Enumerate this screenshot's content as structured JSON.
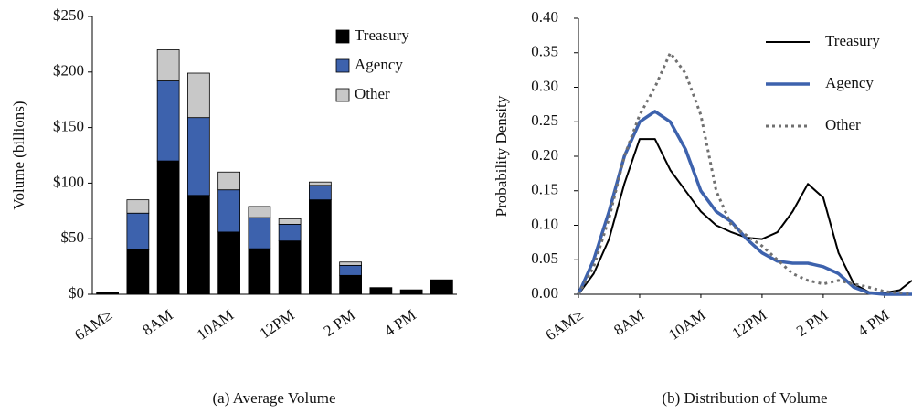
{
  "chart_data": [
    {
      "type": "bar",
      "stacked": true,
      "caption": "(a)  Average Volume",
      "y_label": "Volume (billions)",
      "categories": [
        "6AM≥",
        null,
        "8AM",
        null,
        "10AM",
        null,
        "12PM",
        null,
        "2 PM",
        null,
        "4 PM",
        null
      ],
      "series": [
        {
          "name": "Treasury",
          "color": "#000000",
          "values": [
            2,
            40,
            120,
            89,
            56,
            41,
            48,
            85,
            17,
            6,
            4,
            13
          ]
        },
        {
          "name": "Agency",
          "color": "#3d62ad",
          "values": [
            0,
            33,
            72,
            70,
            38,
            28,
            15,
            13,
            9,
            0,
            0,
            0
          ]
        },
        {
          "name": "Other",
          "color": "#c8c8c8",
          "values": [
            0,
            12,
            28,
            40,
            16,
            10,
            5,
            3,
            3,
            0,
            0,
            0
          ]
        }
      ],
      "ylim": [
        0,
        250
      ],
      "yticks": [
        {
          "value": 0,
          "label": "$0"
        },
        {
          "value": 50,
          "label": "$50"
        },
        {
          "value": 100,
          "label": "$100"
        },
        {
          "value": 150,
          "label": "$150"
        },
        {
          "value": 200,
          "label": "$200"
        },
        {
          "value": 250,
          "label": "$250"
        }
      ],
      "legend": "upper right",
      "grid": false
    },
    {
      "type": "line",
      "caption": "(b)  Distribution of Volume",
      "y_label": "Probability Density",
      "x": [
        6,
        6.5,
        7,
        7.5,
        8,
        8.5,
        9,
        9.5,
        10,
        10.5,
        11,
        11.5,
        12,
        12.5,
        13,
        13.5,
        14,
        14.5,
        15,
        15.5,
        16,
        16.5,
        16.9
      ],
      "xlim": [
        6,
        16.9
      ],
      "xticks": [
        {
          "value": 6,
          "label": "6AM≥"
        },
        {
          "value": 8,
          "label": "8AM"
        },
        {
          "value": 10,
          "label": "10AM"
        },
        {
          "value": 12,
          "label": "12PM"
        },
        {
          "value": 14,
          "label": "2 PM"
        },
        {
          "value": 16,
          "label": "4 PM"
        }
      ],
      "series": [
        {
          "name": "Treasury",
          "color": "#000000",
          "line_style": "solid",
          "width": 2,
          "values": [
            0,
            0.03,
            0.08,
            0.16,
            0.225,
            0.225,
            0.18,
            0.15,
            0.12,
            0.1,
            0.09,
            0.082,
            0.08,
            0.09,
            0.12,
            0.16,
            0.14,
            0.06,
            0.015,
            0.003,
            0.002,
            0.006,
            0.02
          ]
        },
        {
          "name": "Agency",
          "color": "#3d62ad",
          "line_style": "solid",
          "width": 3.5,
          "values": [
            0,
            0.05,
            0.12,
            0.2,
            0.25,
            0.265,
            0.25,
            0.21,
            0.15,
            0.12,
            0.105,
            0.08,
            0.06,
            0.048,
            0.045,
            0.045,
            0.04,
            0.03,
            0.01,
            0.002,
            0,
            0,
            0
          ]
        },
        {
          "name": "Other",
          "color": "#707070",
          "line_style": "dotted",
          "width": 3,
          "values": [
            0,
            0.04,
            0.11,
            0.2,
            0.26,
            0.3,
            0.35,
            0.32,
            0.26,
            0.15,
            0.1,
            0.085,
            0.07,
            0.05,
            0.03,
            0.02,
            0.015,
            0.02,
            0.015,
            0.01,
            0.004,
            0.002,
            0
          ]
        }
      ],
      "ylim": [
        0,
        0.4
      ],
      "yticks": [
        {
          "value": 0,
          "label": "0.00"
        },
        {
          "value": 0.05,
          "label": "0.05"
        },
        {
          "value": 0.1,
          "label": "0.10"
        },
        {
          "value": 0.15,
          "label": "0.15"
        },
        {
          "value": 0.2,
          "label": "0.20"
        },
        {
          "value": 0.25,
          "label": "0.25"
        },
        {
          "value": 0.3,
          "label": "0.30"
        },
        {
          "value": 0.35,
          "label": "0.35"
        },
        {
          "value": 0.4,
          "label": "0.40"
        }
      ],
      "legend": "upper right",
      "grid": false
    }
  ]
}
